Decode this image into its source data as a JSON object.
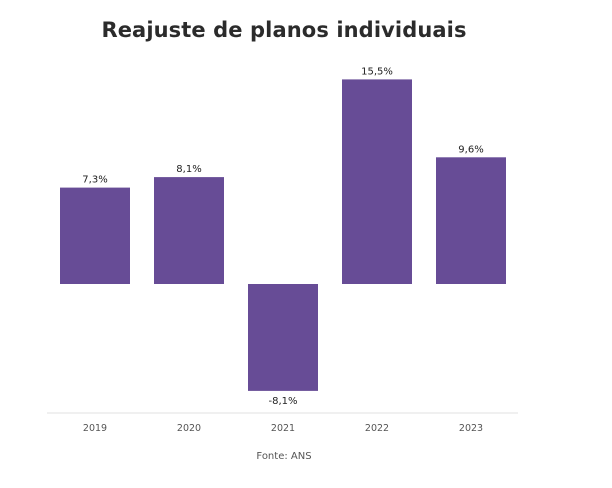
{
  "chart_data": {
    "type": "bar",
    "title": "Reajuste de planos individuais",
    "categories": [
      "2019",
      "2020",
      "2021",
      "2022",
      "2023"
    ],
    "values": [
      7.3,
      8.1,
      -8.1,
      15.5,
      9.6
    ],
    "value_labels": [
      "7,3%",
      "8,1%",
      "-8,1%",
      "15,5%",
      "9,6%"
    ],
    "xlabel": "",
    "ylabel": "",
    "grid": false,
    "legend": "none",
    "bar_color": "#674c96",
    "source": "Fonte: ANS"
  }
}
